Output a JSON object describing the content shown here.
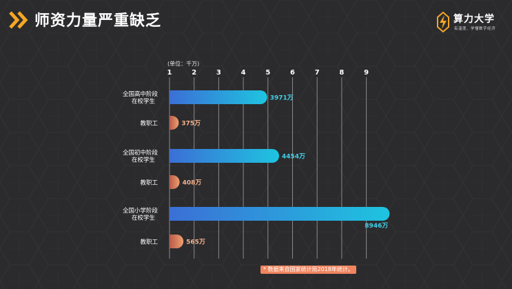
{
  "header": {
    "title": "师资力量严重缺乏",
    "title_icon": "double-chevron-right-icon",
    "accent": "#f5a623"
  },
  "logo": {
    "name": "算力大学",
    "slogan": "有温度、学懂数字经济",
    "icon": "lightning-bolt-icon"
  },
  "unit_label": "(单位：千万)",
  "footnote": "* 数据来自国家统计局2018年统计。",
  "colors": {
    "background": "#2b2b2d",
    "student_bar_start": "#3b6fd6",
    "student_bar_end": "#1ec4e0",
    "teacher_bar_start": "#b85a4a",
    "teacher_bar_end": "#f0a070",
    "student_label": "#3fd0e8",
    "teacher_label": "#f5b08a"
  },
  "chart_data": {
    "type": "bar",
    "orientation": "horizontal",
    "x_ticks": [
      "1",
      "2",
      "3",
      "4",
      "5",
      "6",
      "7",
      "8",
      "9"
    ],
    "xlim": [
      1,
      9
    ],
    "grid": true,
    "categories": [
      [
        "全国高中阶段",
        "在校学生"
      ],
      [
        "教职工"
      ],
      [
        "全国初中阶段",
        "在校学生"
      ],
      [
        "教职工"
      ],
      [
        "全国小学阶段",
        "在校学生"
      ],
      [
        "教职工"
      ]
    ],
    "values": [
      3971,
      375,
      4454,
      408,
      8946,
      565
    ],
    "value_labels": [
      "3971万",
      "375万",
      "4454万",
      "408万",
      "8946万",
      "565万"
    ],
    "kinds": [
      "student",
      "teacher",
      "student",
      "teacher",
      "student",
      "teacher"
    ]
  }
}
